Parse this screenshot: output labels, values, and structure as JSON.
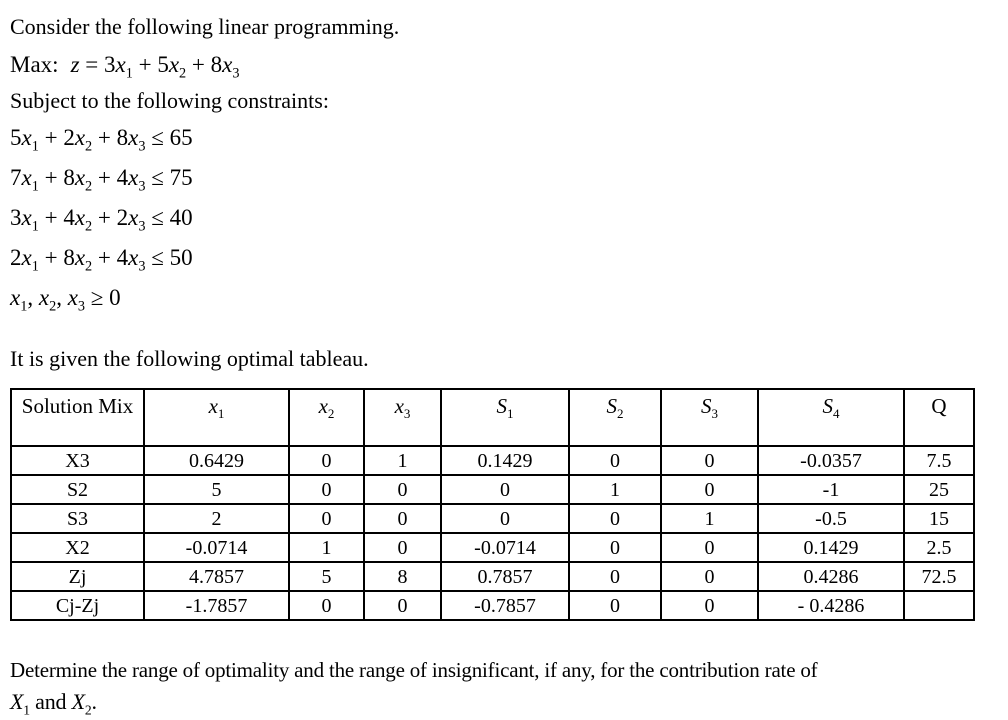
{
  "colors": {
    "background": "#ffffff",
    "text": "#000000",
    "table_border": "#000000"
  },
  "problem": {
    "intro": "Consider the following linear programming.",
    "objective_prefix": "Max:",
    "objective_math": "*z* = 3*x*_1 + 5*x*_2 + 8*x*_3",
    "subject": "Subject to the following constraints:",
    "constraints_math": [
      "5*x*_1 + 2*x*_2 + 8*x*_3 ≤ 65",
      "7*x*_1 + 8*x*_2 + 4*x*_3 ≤ 75",
      "3*x*_1 + 4*x*_2 + 2*x*_3 ≤ 40",
      "2*x*_1 + 8*x*_2 + 4*x*_3 ≤ 50",
      "*x*_1, *x*_2, *x*_3 ≥ 0"
    ],
    "tableau_intro": "It is given the following optimal tableau."
  },
  "tableau": {
    "column_headers_math": [
      "Solution Mix",
      "*x*_1",
      "*x*_2",
      "*x*_3",
      "*S*_1",
      "*S*_2",
      "*S*_3",
      "*S*_4",
      "Q"
    ],
    "rows": [
      [
        "X3",
        "0.6429",
        "0",
        "1",
        "0.1429",
        "0",
        "0",
        "-0.0357",
        "7.5"
      ],
      [
        "S2",
        "5",
        "0",
        "0",
        "0",
        "1",
        "0",
        "-1",
        "25"
      ],
      [
        "S3",
        "2",
        "0",
        "0",
        "0",
        "0",
        "1",
        "-0.5",
        "15"
      ],
      [
        "X2",
        "-0.0714",
        "1",
        "0",
        "-0.0714",
        "0",
        "0",
        "0.1429",
        "2.5"
      ],
      [
        "Zj",
        "4.7857",
        "5",
        "8",
        "0.7857",
        "0",
        "0",
        "0.4286",
        "72.5"
      ],
      [
        "Cj-Zj",
        "-1.7857",
        "0",
        "0",
        "-0.7857",
        "0",
        "0",
        "- 0.4286",
        ""
      ]
    ]
  },
  "question": {
    "line": "Determine the range of optimality and the range of insignificant, if any, for the contribution rate of",
    "variables_math": "*X*_1 and *X*_2."
  }
}
